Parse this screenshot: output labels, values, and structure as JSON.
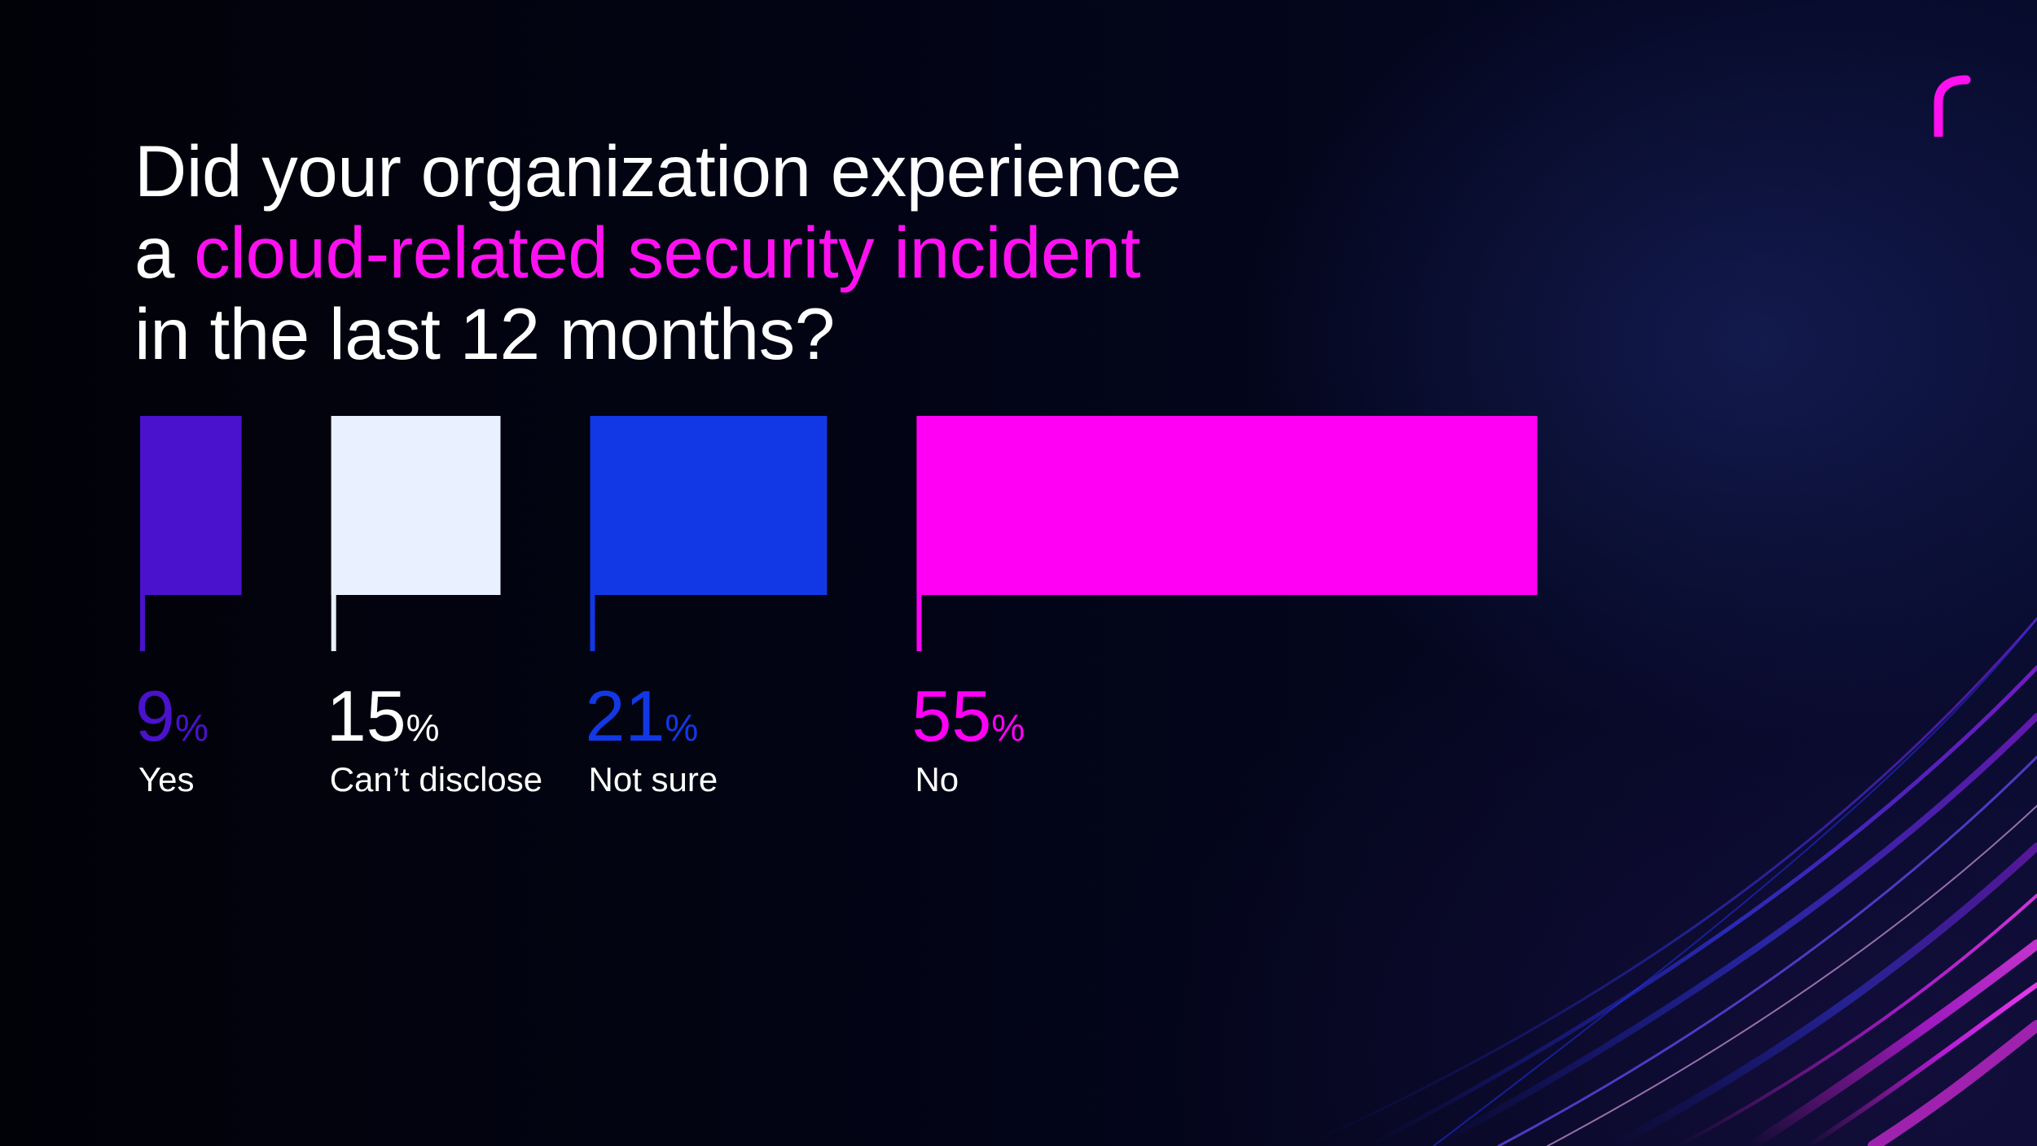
{
  "title": {
    "line1": "Did your organization experience",
    "line2_prefix": "a ",
    "line2_highlight": "cloud-related security incident",
    "line3": "in the last 12 months?"
  },
  "colors": {
    "highlight": "#ff10f0",
    "background": "#02030a",
    "text": "#ffffff"
  },
  "logo_icon": "r-logo-icon",
  "chart_data": {
    "type": "bar",
    "orientation": "horizontal-flags",
    "unit": "%",
    "categories": [
      "Yes",
      "Can’t disclose",
      "Not sure",
      "No"
    ],
    "values": [
      9,
      15,
      21,
      55
    ],
    "colors": [
      "#4a12cc",
      "#e9f0ff",
      "#1238e6",
      "#ff00f5"
    ],
    "label_colors": [
      "#4a12cc",
      "#ffffff",
      "#1238e6",
      "#ff00f5"
    ],
    "max": 55
  }
}
